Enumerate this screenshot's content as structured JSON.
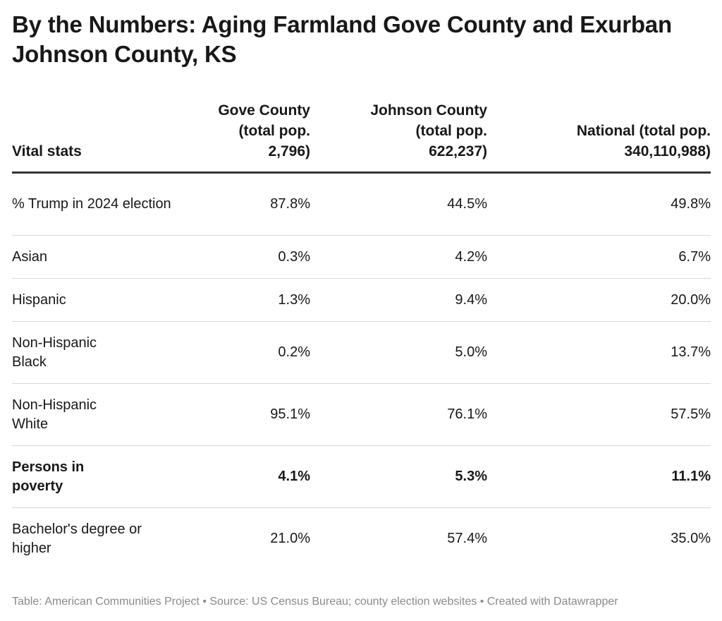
{
  "title": "By the Numbers: Aging Farmland Gove County and Exurban Johnson County, KS",
  "chart_data": {
    "type": "table",
    "title": "By the Numbers: Aging Farmland Gove County and Exurban Johnson County, KS",
    "columns": [
      "Vital stats",
      "Gove County (total pop. 2,796)",
      "Johnson County (total pop. 622,237)",
      "National (total pop. 340,110,988)"
    ],
    "rows": [
      {
        "label": "% Trump in 2024 election",
        "values": [
          "87.8%",
          "44.5%",
          "49.8%"
        ],
        "bold": false
      },
      {
        "label": "Asian",
        "values": [
          "0.3%",
          "4.2%",
          "6.7%"
        ],
        "bold": false
      },
      {
        "label": "Hispanic",
        "values": [
          "1.3%",
          "9.4%",
          "20.0%"
        ],
        "bold": false
      },
      {
        "label": "Non-Hispanic Black",
        "values": [
          "0.2%",
          "5.0%",
          "13.7%"
        ],
        "bold": false
      },
      {
        "label": "Non-Hispanic White",
        "values": [
          "95.1%",
          "76.1%",
          "57.5%"
        ],
        "bold": false
      },
      {
        "label": "Persons in poverty",
        "values": [
          "4.1%",
          "5.3%",
          "11.1%"
        ],
        "bold": true
      },
      {
        "label": "Bachelor's degree or higher",
        "values": [
          "21.0%",
          "57.4%",
          "35.0%"
        ],
        "bold": false
      }
    ]
  },
  "footer": "Table: American Communities Project • Source: US Census Bureau; county election websites • Created with Datawrapper"
}
